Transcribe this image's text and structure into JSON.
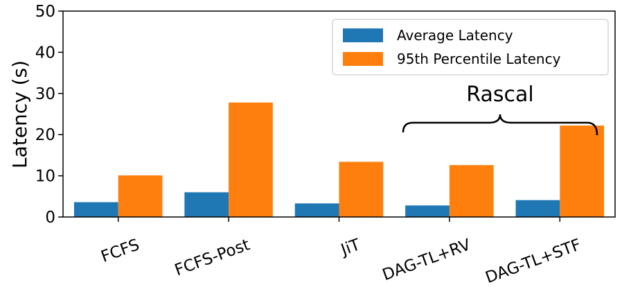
{
  "chart_data": {
    "type": "bar",
    "title": "",
    "xlabel": "",
    "ylabel": "Latency (s)",
    "ylim": [
      0,
      50
    ],
    "yticks": [
      "0",
      "10",
      "20",
      "30",
      "40",
      "50"
    ],
    "categories": [
      "FCFS",
      "FCFS-Post",
      "JiT",
      "DAG-TL+RV",
      "DAG-TL+STF"
    ],
    "series": [
      {
        "name": "Average Latency",
        "color": "#1f77b4",
        "values": [
          3.6,
          6.0,
          3.3,
          2.8,
          4.1
        ]
      },
      {
        "name": "95th Percentile Latency",
        "color": "#ff7f0e",
        "values": [
          10.1,
          27.8,
          13.4,
          12.6,
          22.2
        ]
      }
    ],
    "legend_position": "top-right",
    "annotation": {
      "text": "Rascal",
      "spans_categories": [
        "DAG-TL+RV",
        "DAG-TL+STF"
      ]
    }
  }
}
